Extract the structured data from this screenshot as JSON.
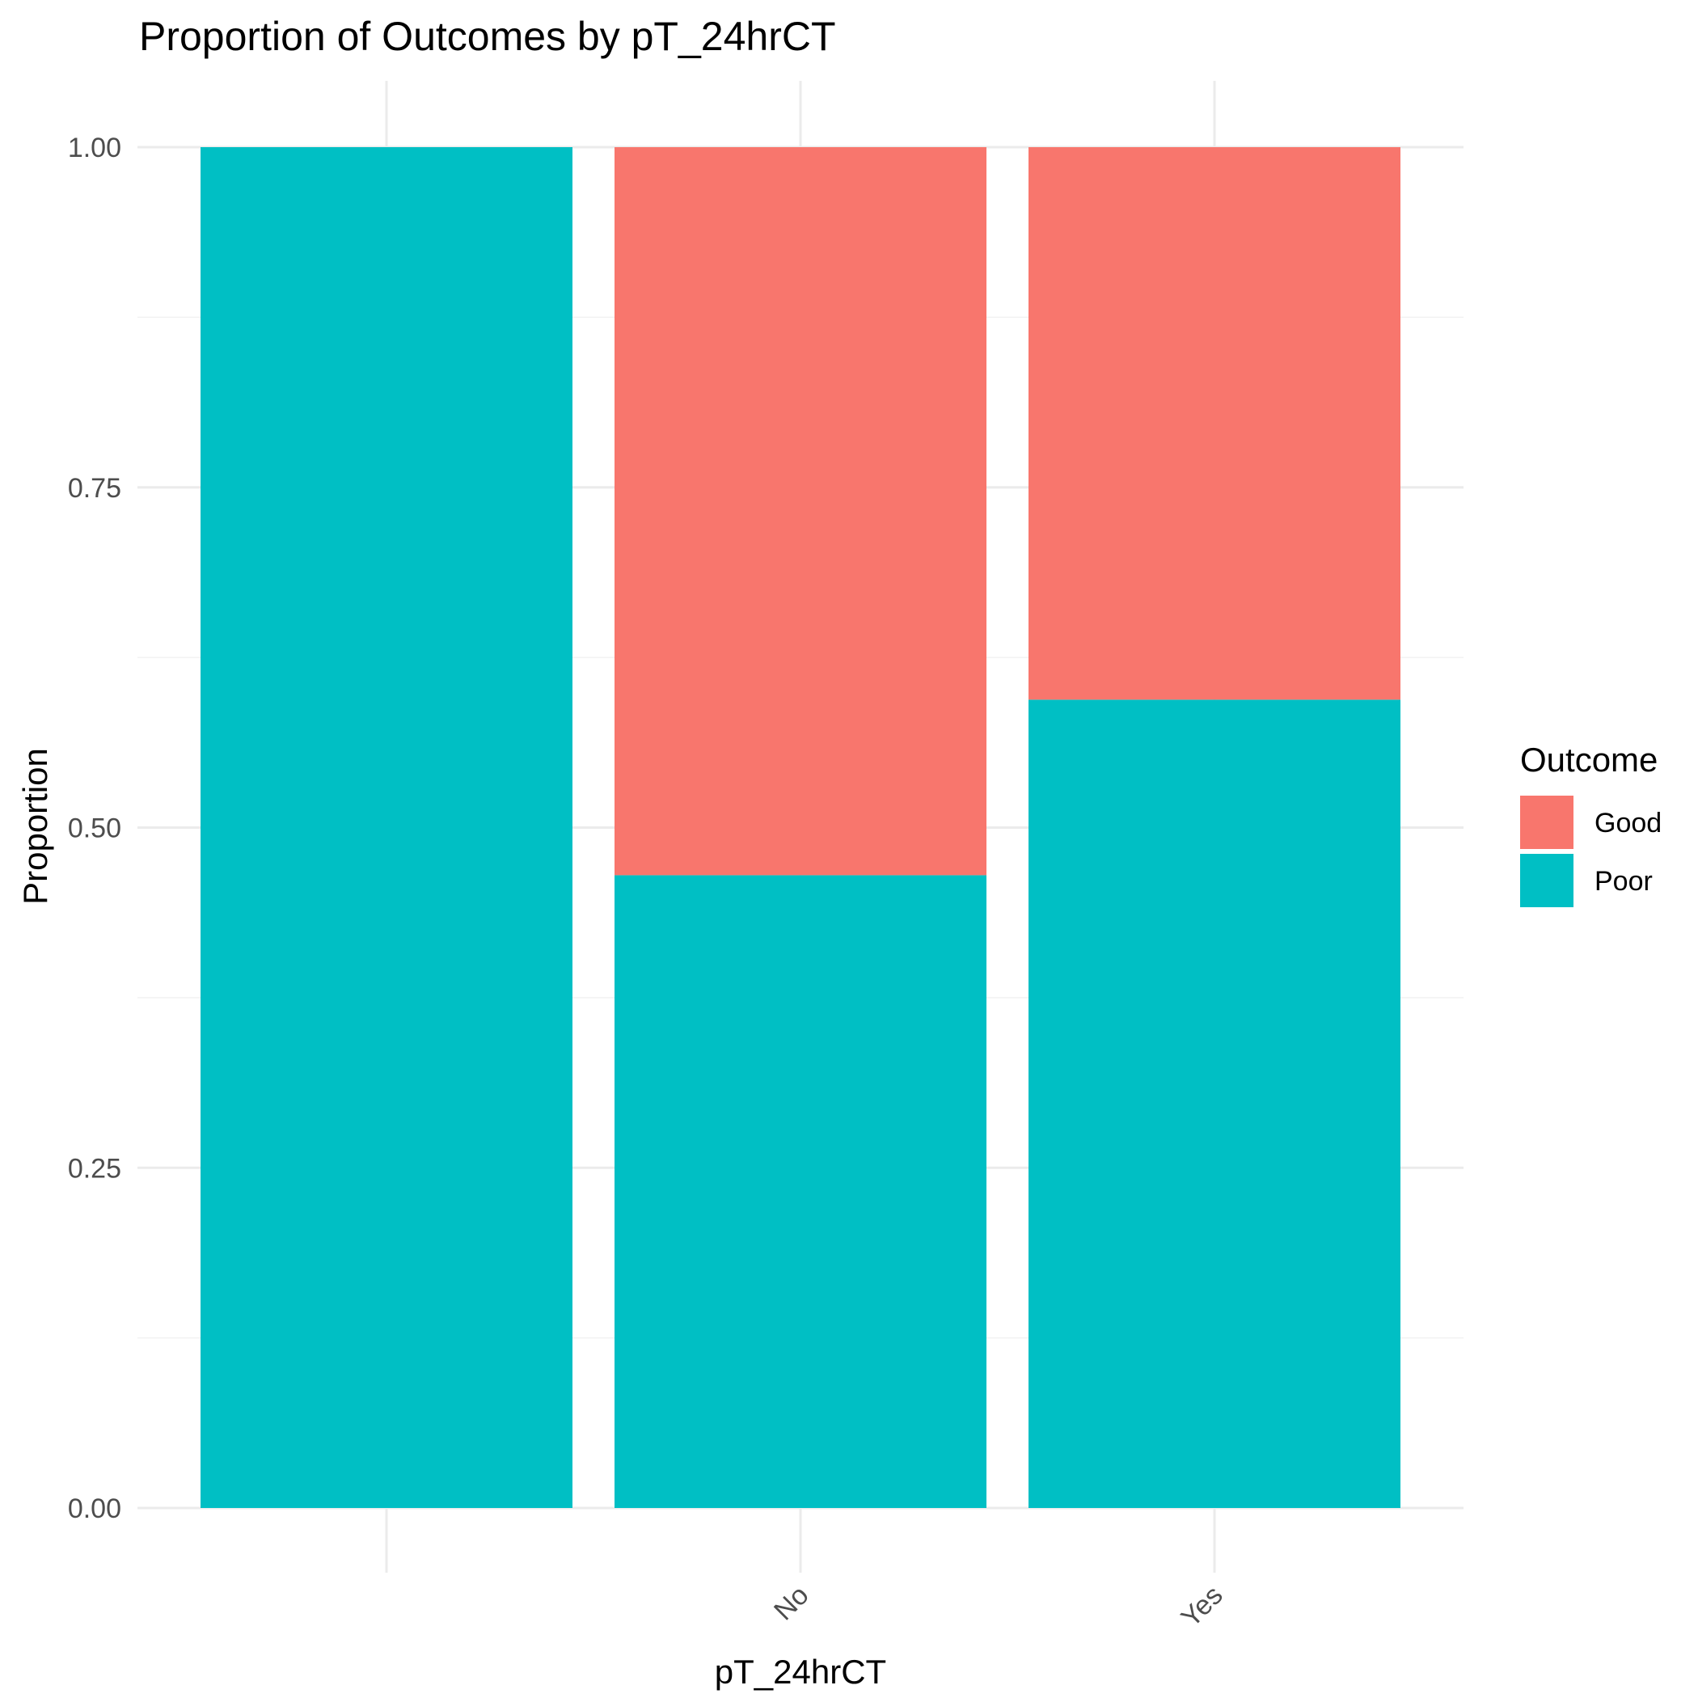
{
  "chart_data": {
    "type": "bar",
    "stacked": true,
    "title": "Proportion of Outcomes by pT_24hrCT",
    "xlabel": "pT_24hrCT",
    "ylabel": "Proportion",
    "categories": [
      "",
      "No",
      "Yes"
    ],
    "ylim": [
      0,
      1
    ],
    "yticks": [
      "0.00",
      "0.25",
      "0.50",
      "0.75",
      "1.00"
    ],
    "grid": true,
    "legend": {
      "title": "Outcome",
      "placement": "right",
      "entries": [
        "Good",
        "Poor"
      ]
    },
    "series": [
      {
        "name": "Poor",
        "color": "#00BFC4",
        "values": [
          1.0,
          0.465,
          0.594
        ]
      },
      {
        "name": "Good",
        "color": "#F8766D",
        "values": [
          0.0,
          0.535,
          0.406
        ]
      }
    ]
  }
}
